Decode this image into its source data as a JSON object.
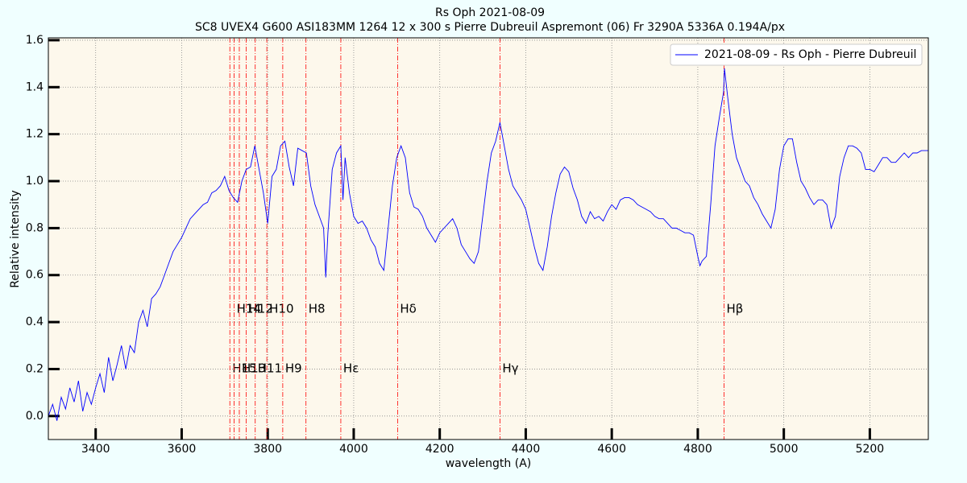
{
  "chart_data": {
    "type": "line",
    "title": "Rs Oph 2021-08-09",
    "subtitle": "SC8 UVEX4 G600 ASI183MM 1264 12 x 300 s Pierre Dubreuil Aspremont (06) Fr 3290A 5336A 0.194A/px",
    "x_label": "wavelength (A)",
    "y_label": "Relative intensity",
    "xlim": [
      3290,
      5336
    ],
    "ylim": [
      -0.1,
      1.61
    ],
    "xticks": [
      3400,
      3600,
      3800,
      4000,
      4200,
      4400,
      4600,
      4800,
      5000,
      5200
    ],
    "yticks": [
      {
        "value": 0,
        "label": "0.0"
      },
      0.2,
      0.4,
      0.6,
      0.8,
      {
        "value": 1,
        "label": "1.0"
      },
      1.2,
      1.4,
      1.6
    ],
    "grid": true,
    "legend": "upper right",
    "series": [
      {
        "name": "2021-08-09 - Rs Oph - Pierre Dubreuil",
        "color": "#0000ff",
        "x": [
          3290,
          3300,
          3310,
          3320,
          3330,
          3340,
          3350,
          3360,
          3370,
          3380,
          3390,
          3400,
          3410,
          3420,
          3430,
          3440,
          3450,
          3460,
          3470,
          3480,
          3490,
          3500,
          3510,
          3520,
          3530,
          3540,
          3550,
          3560,
          3570,
          3580,
          3590,
          3600,
          3610,
          3620,
          3630,
          3640,
          3650,
          3660,
          3670,
          3680,
          3690,
          3700,
          3710,
          3720,
          3730,
          3740,
          3750,
          3760,
          3770,
          3780,
          3790,
          3800,
          3810,
          3820,
          3830,
          3840,
          3850,
          3860,
          3870,
          3880,
          3890,
          3900,
          3910,
          3920,
          3930,
          3935,
          3940,
          3950,
          3960,
          3970,
          3975,
          3980,
          3990,
          4000,
          4010,
          4020,
          4030,
          4040,
          4050,
          4060,
          4070,
          4080,
          4090,
          4100,
          4110,
          4120,
          4130,
          4140,
          4150,
          4160,
          4170,
          4180,
          4190,
          4200,
          4210,
          4220,
          4230,
          4240,
          4250,
          4260,
          4270,
          4280,
          4290,
          4300,
          4310,
          4320,
          4330,
          4340,
          4350,
          4360,
          4370,
          4380,
          4390,
          4400,
          4410,
          4420,
          4430,
          4440,
          4450,
          4460,
          4470,
          4480,
          4490,
          4500,
          4510,
          4520,
          4530,
          4540,
          4550,
          4560,
          4570,
          4580,
          4590,
          4600,
          4610,
          4620,
          4630,
          4640,
          4650,
          4660,
          4670,
          4680,
          4690,
          4700,
          4710,
          4720,
          4730,
          4740,
          4750,
          4760,
          4770,
          4780,
          4790,
          4800,
          4805,
          4810,
          4820,
          4830,
          4840,
          4850,
          4860,
          4862,
          4870,
          4880,
          4890,
          4900,
          4910,
          4920,
          4930,
          4940,
          4950,
          4960,
          4970,
          4980,
          4990,
          5000,
          5010,
          5020,
          5030,
          5040,
          5050,
          5060,
          5070,
          5080,
          5090,
          5100,
          5110,
          5120,
          5130,
          5140,
          5150,
          5160,
          5170,
          5180,
          5190,
          5200,
          5210,
          5220,
          5230,
          5240,
          5250,
          5260,
          5270,
          5280,
          5290,
          5300,
          5310,
          5320,
          5336
        ],
        "values": [
          0.0,
          0.05,
          -0.02,
          0.08,
          0.03,
          0.12,
          0.06,
          0.15,
          0.02,
          0.1,
          0.05,
          0.12,
          0.18,
          0.1,
          0.25,
          0.15,
          0.22,
          0.3,
          0.2,
          0.3,
          0.27,
          0.4,
          0.45,
          0.38,
          0.5,
          0.52,
          0.55,
          0.6,
          0.65,
          0.7,
          0.73,
          0.76,
          0.8,
          0.84,
          0.86,
          0.88,
          0.9,
          0.91,
          0.95,
          0.96,
          0.98,
          1.02,
          0.96,
          0.93,
          0.91,
          1.0,
          1.05,
          1.06,
          1.15,
          1.05,
          0.95,
          0.82,
          1.02,
          1.05,
          1.15,
          1.17,
          1.06,
          0.98,
          1.14,
          1.13,
          1.12,
          0.98,
          0.9,
          0.85,
          0.8,
          0.59,
          0.78,
          1.05,
          1.12,
          1.15,
          0.92,
          1.1,
          0.95,
          0.85,
          0.82,
          0.83,
          0.8,
          0.75,
          0.72,
          0.65,
          0.62,
          0.8,
          0.98,
          1.1,
          1.15,
          1.1,
          0.95,
          0.89,
          0.88,
          0.85,
          0.8,
          0.77,
          0.74,
          0.78,
          0.8,
          0.82,
          0.84,
          0.8,
          0.73,
          0.7,
          0.67,
          0.65,
          0.7,
          0.85,
          1.0,
          1.12,
          1.17,
          1.25,
          1.15,
          1.05,
          0.98,
          0.95,
          0.92,
          0.88,
          0.8,
          0.72,
          0.65,
          0.62,
          0.72,
          0.85,
          0.95,
          1.03,
          1.06,
          1.04,
          0.97,
          0.92,
          0.85,
          0.82,
          0.87,
          0.84,
          0.85,
          0.83,
          0.87,
          0.9,
          0.88,
          0.92,
          0.93,
          0.93,
          0.92,
          0.9,
          0.89,
          0.88,
          0.87,
          0.85,
          0.84,
          0.84,
          0.82,
          0.8,
          0.8,
          0.79,
          0.78,
          0.78,
          0.77,
          0.68,
          0.64,
          0.66,
          0.68,
          0.9,
          1.15,
          1.27,
          1.38,
          1.48,
          1.35,
          1.2,
          1.1,
          1.05,
          1.0,
          0.98,
          0.93,
          0.9,
          0.86,
          0.83,
          0.8,
          0.88,
          1.05,
          1.15,
          1.18,
          1.18,
          1.08,
          1.0,
          0.97,
          0.93,
          0.9,
          0.92,
          0.92,
          0.9,
          0.8,
          0.85,
          1.02,
          1.1,
          1.15,
          1.15,
          1.14,
          1.12,
          1.05,
          1.05,
          1.04,
          1.07,
          1.1,
          1.1,
          1.08,
          1.08,
          1.1,
          1.12,
          1.1,
          1.12,
          1.12,
          1.13,
          1.13
        ]
      }
    ],
    "line_color": "#ff0000",
    "annotations": [
      {
        "x": 3712,
        "label": "H15"
      },
      {
        "x": 3722,
        "label": "H14"
      },
      {
        "x": 3734,
        "label": "H13"
      },
      {
        "x": 3750,
        "label": "H12"
      },
      {
        "x": 3771,
        "label": "H11"
      },
      {
        "x": 3798,
        "label": "H10"
      },
      {
        "x": 3835,
        "label": "H9"
      },
      {
        "x": 3889,
        "label": "H8"
      },
      {
        "x": 3970,
        "label": "Hε"
      },
      {
        "x": 4102,
        "label": "Hδ"
      },
      {
        "x": 4340,
        "label": "Hγ"
      },
      {
        "x": 4861,
        "label": "Hβ"
      }
    ]
  }
}
